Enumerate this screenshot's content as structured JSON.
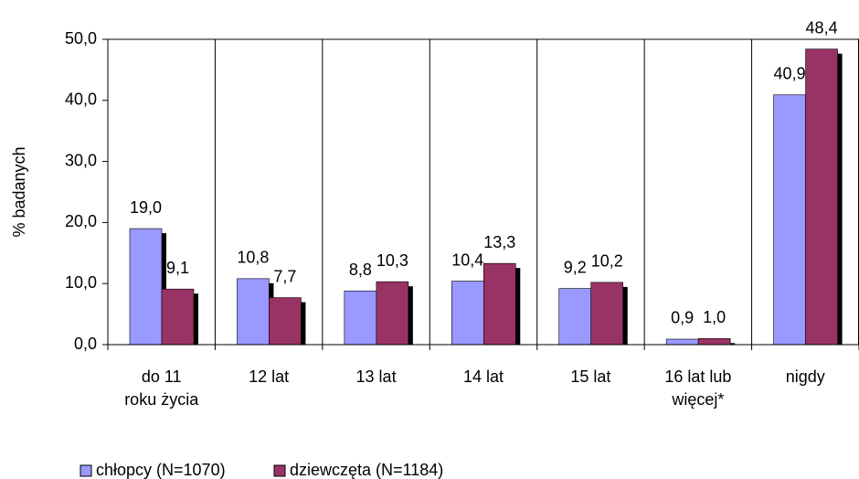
{
  "chart_data": {
    "type": "bar",
    "y_axis_label": "% badanych",
    "categories": [
      "do 11\nroku życia",
      "12 lat",
      "13 lat",
      "14 lat",
      "15 lat",
      "16 lat lub\nwięcej*",
      "nigdy"
    ],
    "series": [
      {
        "name": "chłopcy (N=1070)",
        "color": "#9999ff",
        "values": [
          19.0,
          10.8,
          8.8,
          10.4,
          9.2,
          0.9,
          40.9
        ],
        "value_labels": [
          "19,0",
          "10,8",
          "8,8",
          "10,4",
          "9,2",
          "0,9",
          "40,9"
        ]
      },
      {
        "name": "dziewczęta (N=1184)",
        "color": "#993366",
        "values": [
          9.1,
          7.7,
          10.3,
          13.3,
          10.2,
          1.0,
          48.4
        ],
        "value_labels": [
          "9,1",
          "7,7",
          "10,3",
          "13,3",
          "10,2",
          "1,0",
          "48,4"
        ]
      }
    ],
    "ylim": [
      0,
      50
    ],
    "yticks": [
      {
        "value": 0,
        "label": "0,0"
      },
      {
        "value": 10,
        "label": "10,0"
      },
      {
        "value": 20,
        "label": "20,0"
      },
      {
        "value": 30,
        "label": "30,0"
      },
      {
        "value": 40,
        "label": "40,0"
      },
      {
        "value": 50,
        "label": "50,0"
      }
    ],
    "legend": "bottom"
  }
}
